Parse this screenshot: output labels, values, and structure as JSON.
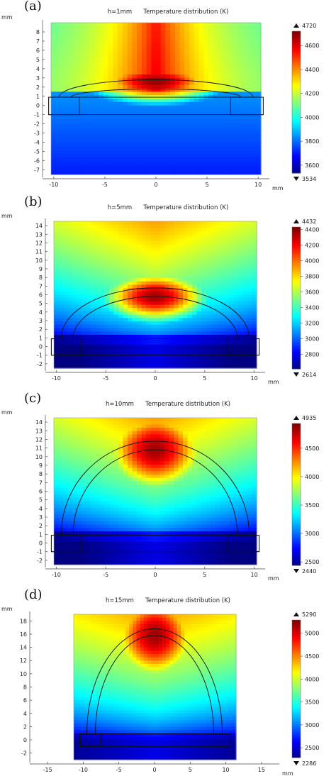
{
  "panels": [
    {
      "label": "(a)",
      "title_h": "h=1mm",
      "title": "Temperature distribution (K)",
      "yunit": "mm",
      "xunit": "mm",
      "xticks": [
        -10,
        -5,
        0,
        5,
        10
      ],
      "yticks": [
        8,
        7,
        6,
        5,
        4,
        3,
        2,
        1,
        0,
        -1,
        -2,
        -3,
        -4,
        -5,
        -6,
        -7
      ],
      "colorbar_max": "4720",
      "colorbar_min": "3534",
      "colorbar_ticks": [
        4600,
        4400,
        4200,
        4000,
        3800,
        3600
      ]
    },
    {
      "label": "(b)",
      "title_h": "h=5mm",
      "title": "Temperature distribution (K)",
      "yunit": "mm",
      "xunit": "mm",
      "xticks": [
        -10,
        -5,
        0,
        5,
        10
      ],
      "yticks": [
        14,
        13,
        12,
        11,
        10,
        9,
        8,
        7,
        6,
        5,
        4,
        3,
        2,
        1,
        0,
        -1,
        -2
      ],
      "colorbar_max": "4432",
      "colorbar_min": "2614",
      "colorbar_ticks": [
        4400,
        4200,
        4000,
        3800,
        3600,
        3400,
        3200,
        3000,
        2800
      ]
    },
    {
      "label": "(c)",
      "title_h": "h=10mm",
      "title": "Temperature distribution (K)",
      "yunit": "mm",
      "xunit": "mm",
      "xticks": [
        -10,
        -5,
        0,
        5,
        10
      ],
      "yticks": [
        14,
        13,
        12,
        11,
        10,
        9,
        8,
        7,
        6,
        5,
        4,
        3,
        2,
        1,
        0,
        -1,
        -2
      ],
      "colorbar_max": "4935",
      "colorbar_min": "2440",
      "colorbar_ticks": [
        4500,
        4000,
        3500,
        3000,
        2500
      ]
    },
    {
      "label": "(d)",
      "title_h": "h=15mm",
      "title": "Temperature distribution (K)",
      "yunit": "mm",
      "xunit": "mm",
      "xticks": [
        -15,
        -10,
        -5,
        0,
        5,
        10,
        15
      ],
      "yticks": [
        18,
        16,
        14,
        12,
        10,
        8,
        6,
        4,
        2,
        0,
        -2
      ],
      "colorbar_max": "5290",
      "colorbar_min": "2286",
      "colorbar_ticks": [
        5000,
        4500,
        4000,
        3500,
        3000,
        2500
      ]
    }
  ],
  "chart_data": [
    {
      "type": "heatmap",
      "title": "Temperature distribution (K)",
      "subtitle": "h=1mm",
      "xlabel": "mm",
      "ylabel": "mm",
      "xlim": [
        -11,
        11
      ],
      "ylim": [
        -7.5,
        9
      ],
      "color_range": [
        3534,
        4720
      ],
      "colormap": "jet",
      "arc_height_mm": 1
    },
    {
      "type": "heatmap",
      "title": "Temperature distribution (K)",
      "subtitle": "h=5mm",
      "xlabel": "mm",
      "ylabel": "mm",
      "xlim": [
        -11,
        11
      ],
      "ylim": [
        -2.5,
        14.5
      ],
      "color_range": [
        2614,
        4432
      ],
      "colormap": "jet",
      "arc_height_mm": 5
    },
    {
      "type": "heatmap",
      "title": "Temperature distribution (K)",
      "subtitle": "h=10mm",
      "xlabel": "mm",
      "ylabel": "mm",
      "xlim": [
        -11,
        11
      ],
      "ylim": [
        -2.5,
        14.5
      ],
      "color_range": [
        2440,
        4935
      ],
      "colormap": "jet",
      "arc_height_mm": 10
    },
    {
      "type": "heatmap",
      "title": "Temperature distribution (K)",
      "subtitle": "h=15mm",
      "xlabel": "mm",
      "ylabel": "mm",
      "xlim": [
        -17,
        17
      ],
      "ylim": [
        -3,
        19
      ],
      "color_range": [
        2286,
        5290
      ],
      "colormap": "jet",
      "arc_height_mm": 15
    }
  ]
}
